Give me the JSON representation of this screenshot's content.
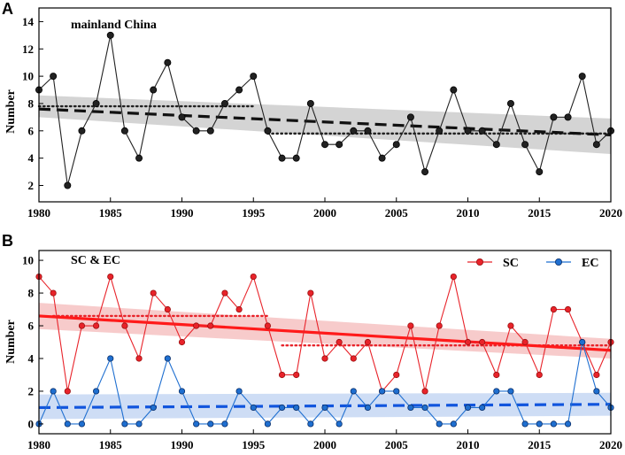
{
  "chart_data": [
    {
      "panel": "A",
      "type": "line",
      "title": "mainland China",
      "xlabel": "",
      "ylabel": "Number",
      "xlim": [
        1980,
        2020
      ],
      "ylim": [
        0.8,
        15
      ],
      "xticks": [
        1980,
        1985,
        1990,
        1995,
        2000,
        2005,
        2010,
        2015,
        2020
      ],
      "yticks": [
        2,
        4,
        6,
        8,
        10,
        12,
        14
      ],
      "x": [
        1980,
        1981,
        1982,
        1983,
        1984,
        1985,
        1986,
        1987,
        1988,
        1989,
        1990,
        1991,
        1992,
        1993,
        1994,
        1995,
        1996,
        1997,
        1998,
        1999,
        2000,
        2001,
        2002,
        2003,
        2004,
        2005,
        2006,
        2007,
        2008,
        2009,
        2010,
        2011,
        2012,
        2013,
        2014,
        2015,
        2016,
        2017,
        2018,
        2019,
        2020
      ],
      "series": [
        {
          "name": "mainland China",
          "color": "#222222",
          "values": [
            9,
            10,
            2,
            6,
            8,
            13,
            6,
            4,
            9,
            11,
            7,
            6,
            6,
            8,
            9,
            10,
            6,
            4,
            4,
            8,
            5,
            5,
            6,
            6,
            4,
            5,
            7,
            3,
            6,
            9,
            6,
            6,
            5,
            8,
            5,
            3,
            7,
            7,
            10,
            5,
            6
          ],
          "trend": {
            "x": [
              1980,
              2020
            ],
            "y": [
              7.6,
              5.7
            ],
            "band_lower": [
              7.0,
              4.3
            ],
            "band_upper": [
              8.6,
              6.9
            ],
            "color": "#111111",
            "band_color": "#cccccc"
          },
          "segment_means": [
            {
              "x": [
                1980,
                1995
              ],
              "y": 7.8
            },
            {
              "x": [
                1996,
                2020
              ],
              "y": 5.8
            }
          ]
        }
      ]
    },
    {
      "panel": "B",
      "type": "line",
      "title": "SC & EC",
      "xlabel": "",
      "ylabel": "Number",
      "xlim": [
        1980,
        2020
      ],
      "ylim": [
        -0.6,
        10.6
      ],
      "xticks": [
        1980,
        1985,
        1990,
        1995,
        2000,
        2005,
        2010,
        2015,
        2020
      ],
      "yticks": [
        0,
        2,
        4,
        6,
        8,
        10
      ],
      "legend": {
        "position": "top-right",
        "entries": [
          "SC",
          "EC"
        ]
      },
      "x": [
        1980,
        1981,
        1982,
        1983,
        1984,
        1985,
        1986,
        1987,
        1988,
        1989,
        1990,
        1991,
        1992,
        1993,
        1994,
        1995,
        1996,
        1997,
        1998,
        1999,
        2000,
        2001,
        2002,
        2003,
        2004,
        2005,
        2006,
        2007,
        2008,
        2009,
        2010,
        2011,
        2012,
        2013,
        2014,
        2015,
        2016,
        2017,
        2018,
        2019,
        2020
      ],
      "series": [
        {
          "name": "SC",
          "color": "#e8232a",
          "values": [
            9,
            8,
            2,
            6,
            6,
            9,
            6,
            4,
            8,
            7,
            5,
            6,
            6,
            8,
            7,
            9,
            6,
            3,
            3,
            8,
            4,
            5,
            4,
            5,
            2,
            3,
            6,
            2,
            6,
            9,
            5,
            5,
            3,
            6,
            5,
            3,
            7,
            7,
            5,
            3,
            5
          ],
          "trend": {
            "x": [
              1980,
              2020
            ],
            "y": [
              6.6,
              4.5
            ],
            "band_lower": [
              5.8,
              4.0
            ],
            "band_upper": [
              7.4,
              5.2
            ],
            "color": "#ff1a1a",
            "band_color": "#f6c2c2"
          },
          "segment_means": [
            {
              "x": [
                1981,
                1996
              ],
              "y": 6.6
            },
            {
              "x": [
                1997,
                2020
              ],
              "y": 4.8
            }
          ]
        },
        {
          "name": "EC",
          "color": "#1f6fd0",
          "values": [
            0,
            2,
            0,
            0,
            2,
            4,
            0,
            0,
            1,
            4,
            2,
            0,
            0,
            0,
            2,
            1,
            0,
            1,
            1,
            0,
            1,
            0,
            2,
            1,
            2,
            2,
            1,
            1,
            0,
            0,
            1,
            1,
            2,
            2,
            0,
            0,
            0,
            0,
            5,
            2,
            1
          ],
          "trend": {
            "x": [
              1980,
              2020
            ],
            "y": [
              1.0,
              1.2
            ],
            "band_lower": [
              0.3,
              0.5
            ],
            "band_upper": [
              1.8,
              1.9
            ],
            "color": "#1155dd",
            "band_color": "#c6d7f3"
          }
        }
      ]
    }
  ]
}
